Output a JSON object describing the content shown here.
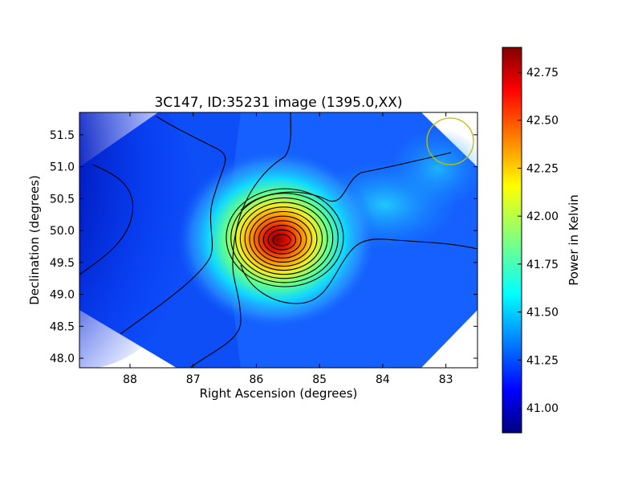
{
  "chart_data": {
    "type": "heatmap",
    "title": "3C147, ID:35231 image (1395.0,XX)",
    "xlabel": "Right Ascension (degrees)",
    "ylabel": "Declination (degrees)",
    "xlim": [
      88.8,
      82.5
    ],
    "ylim": [
      47.85,
      51.85
    ],
    "x_ticks": [
      88,
      87,
      86,
      85,
      84,
      83
    ],
    "y_ticks": [
      48.0,
      48.5,
      49.0,
      49.5,
      50.0,
      50.5,
      51.0,
      51.5
    ],
    "colorbar": {
      "label": "Power in Kelvin",
      "range": [
        40.87,
        42.88
      ],
      "ticks": [
        41.0,
        41.25,
        41.5,
        41.75,
        42.0,
        42.25,
        42.5,
        42.75
      ],
      "colormap": "jet"
    },
    "source_peak": {
      "ra": 85.6,
      "dec": 49.85,
      "value": 42.85
    },
    "beam_circle": {
      "ra": 83.0,
      "dec": 51.4,
      "radius_deg": 0.37,
      "color": "#bfbf00"
    },
    "contour_color": "#000000"
  }
}
